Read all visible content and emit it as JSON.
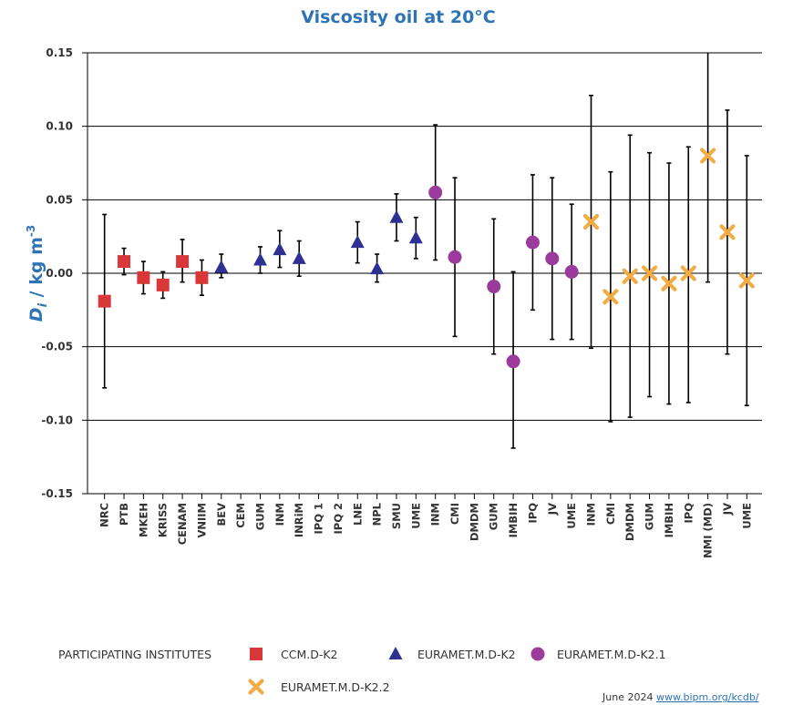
{
  "chart_data": {
    "type": "scatter",
    "title": "Viscosity oil at 20°C",
    "ylabel": "Di / kg m-3",
    "ylabel_parts": {
      "symbol": "D",
      "subscript": "i",
      "units": " / kg m",
      "superscript": "-3"
    },
    "xlabel": "",
    "ylim": [
      -0.15,
      0.15
    ],
    "yticks": [
      0.15,
      0.1,
      0.05,
      0.0,
      -0.05,
      -0.1,
      -0.15
    ],
    "ytick_labels": [
      "0.15",
      "0.10",
      "0.05",
      "0.00",
      "-0.05",
      "-0.10",
      "-0.15"
    ],
    "grid": true,
    "categories": [
      "NRC",
      "PTB",
      "MKEH",
      "KRISS",
      "CENAM",
      "VNIIM",
      "BEV",
      "CEM",
      "GUM",
      "INM",
      "INRiM",
      "IPQ 1",
      "IPQ 2",
      "LNE",
      "NPL",
      "SMU",
      "UME",
      "INM",
      "CMI",
      "DMDM",
      "GUM",
      "IMBIH",
      "IPQ",
      "JV",
      "UME",
      "INM",
      "CMI",
      "DMDM",
      "GUM",
      "IMBIH",
      "IPQ",
      "NMI (MD)",
      "JV",
      "UME"
    ],
    "series": [
      {
        "name": "CCM.D-K2",
        "marker": "square",
        "color": "#d9383a",
        "points": [
          {
            "index": 0,
            "value": -0.019,
            "lower": -0.078,
            "upper": 0.04
          },
          {
            "index": 1,
            "value": 0.008,
            "lower": -0.001,
            "upper": 0.017
          },
          {
            "index": 2,
            "value": -0.003,
            "lower": -0.014,
            "upper": 0.008
          },
          {
            "index": 3,
            "value": -0.008,
            "lower": -0.017,
            "upper": 0.001
          },
          {
            "index": 4,
            "value": 0.008,
            "lower": -0.006,
            "upper": 0.023
          },
          {
            "index": 5,
            "value": -0.003,
            "lower": -0.015,
            "upper": 0.009
          }
        ]
      },
      {
        "name": "EURAMET.M.D-K2",
        "marker": "triangle",
        "color": "#2e3192",
        "points": [
          {
            "index": 6,
            "value": 0.004,
            "lower": -0.003,
            "upper": 0.013
          },
          {
            "index": 8,
            "value": 0.009,
            "lower": 0.0,
            "upper": 0.018
          },
          {
            "index": 9,
            "value": 0.016,
            "lower": 0.004,
            "upper": 0.029
          },
          {
            "index": 10,
            "value": 0.01,
            "lower": -0.002,
            "upper": 0.022
          },
          {
            "index": 13,
            "value": 0.021,
            "lower": 0.007,
            "upper": 0.035
          },
          {
            "index": 14,
            "value": 0.003,
            "lower": -0.006,
            "upper": 0.013
          },
          {
            "index": 15,
            "value": 0.038,
            "lower": 0.022,
            "upper": 0.054
          },
          {
            "index": 16,
            "value": 0.024,
            "lower": 0.01,
            "upper": 0.038
          }
        ]
      },
      {
        "name": "EURAMET.M.D-K2.1",
        "marker": "circle",
        "color": "#9b3b9b",
        "points": [
          {
            "index": 17,
            "value": 0.055,
            "lower": 0.009,
            "upper": 0.101
          },
          {
            "index": 18,
            "value": 0.011,
            "lower": -0.043,
            "upper": 0.065
          },
          {
            "index": 20,
            "value": -0.009,
            "lower": -0.055,
            "upper": 0.037
          },
          {
            "index": 21,
            "value": -0.06,
            "lower": -0.119,
            "upper": 0.001
          },
          {
            "index": 22,
            "value": 0.021,
            "lower": -0.025,
            "upper": 0.067
          },
          {
            "index": 23,
            "value": 0.01,
            "lower": -0.045,
            "upper": 0.065
          },
          {
            "index": 24,
            "value": 0.001,
            "lower": -0.045,
            "upper": 0.047
          }
        ]
      },
      {
        "name": "EURAMET.M.D-K2.2",
        "marker": "cross",
        "color": "#f2ac45",
        "points": [
          {
            "index": 25,
            "value": 0.035,
            "lower": -0.051,
            "upper": 0.121
          },
          {
            "index": 26,
            "value": -0.016,
            "lower": -0.101,
            "upper": 0.069
          },
          {
            "index": 27,
            "value": -0.002,
            "lower": -0.098,
            "upper": 0.094
          },
          {
            "index": 28,
            "value": 0.0,
            "lower": -0.084,
            "upper": 0.082
          },
          {
            "index": 29,
            "value": -0.007,
            "lower": -0.089,
            "upper": 0.075
          },
          {
            "index": 30,
            "value": 0.0,
            "lower": -0.088,
            "upper": 0.086
          },
          {
            "index": 31,
            "value": 0.08,
            "lower": -0.006,
            "upper": 0.166
          },
          {
            "index": 32,
            "value": 0.028,
            "lower": -0.055,
            "upper": 0.111
          },
          {
            "index": 33,
            "value": -0.005,
            "lower": -0.09,
            "upper": 0.08
          }
        ]
      }
    ],
    "legend": {
      "heading": "PARTICIPATING INSTITUTES",
      "placement": "bottom"
    }
  },
  "footer": {
    "date": "June 2024",
    "link": "www.bipm.org/kcdb/"
  },
  "colors": {
    "title": "#2e74b5",
    "link": "#2e74b5",
    "grid": "#000000",
    "errorbar": "#000000"
  }
}
